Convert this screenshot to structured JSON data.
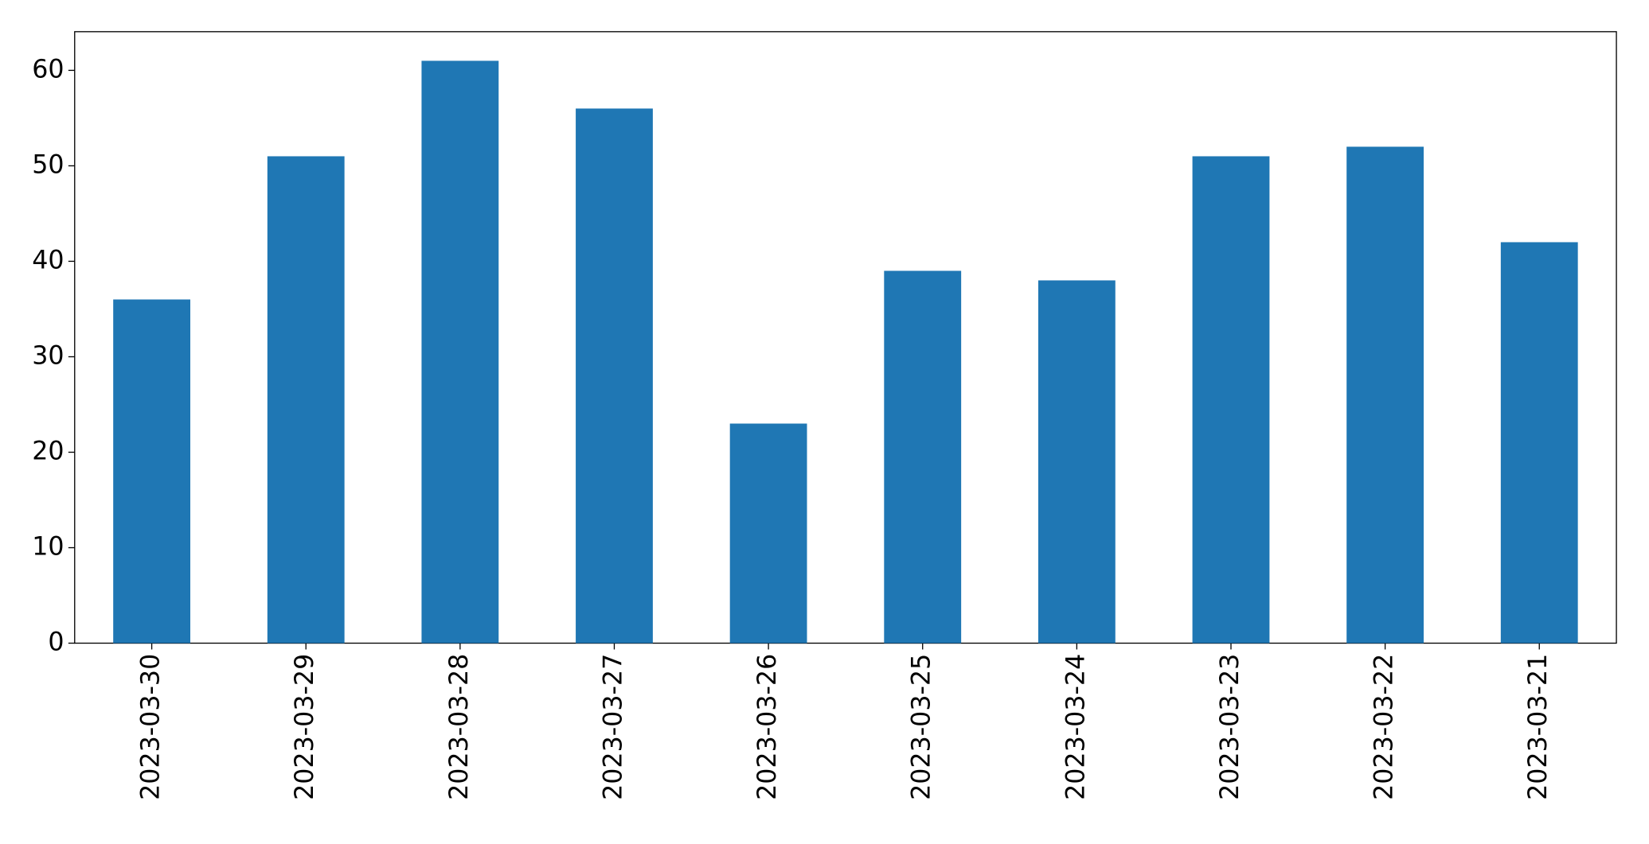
{
  "chart_data": {
    "type": "bar",
    "categories": [
      "2023-03-30",
      "2023-03-29",
      "2023-03-28",
      "2023-03-27",
      "2023-03-26",
      "2023-03-25",
      "2023-03-24",
      "2023-03-23",
      "2023-03-22",
      "2023-03-21"
    ],
    "values": [
      36,
      51,
      61,
      56,
      23,
      39,
      38,
      51,
      52,
      42
    ],
    "color": "#1f77b4",
    "ylim": [
      0,
      64.05
    ],
    "yticks": [
      0,
      10,
      20,
      30,
      40,
      50,
      60
    ],
    "grid": false
  }
}
